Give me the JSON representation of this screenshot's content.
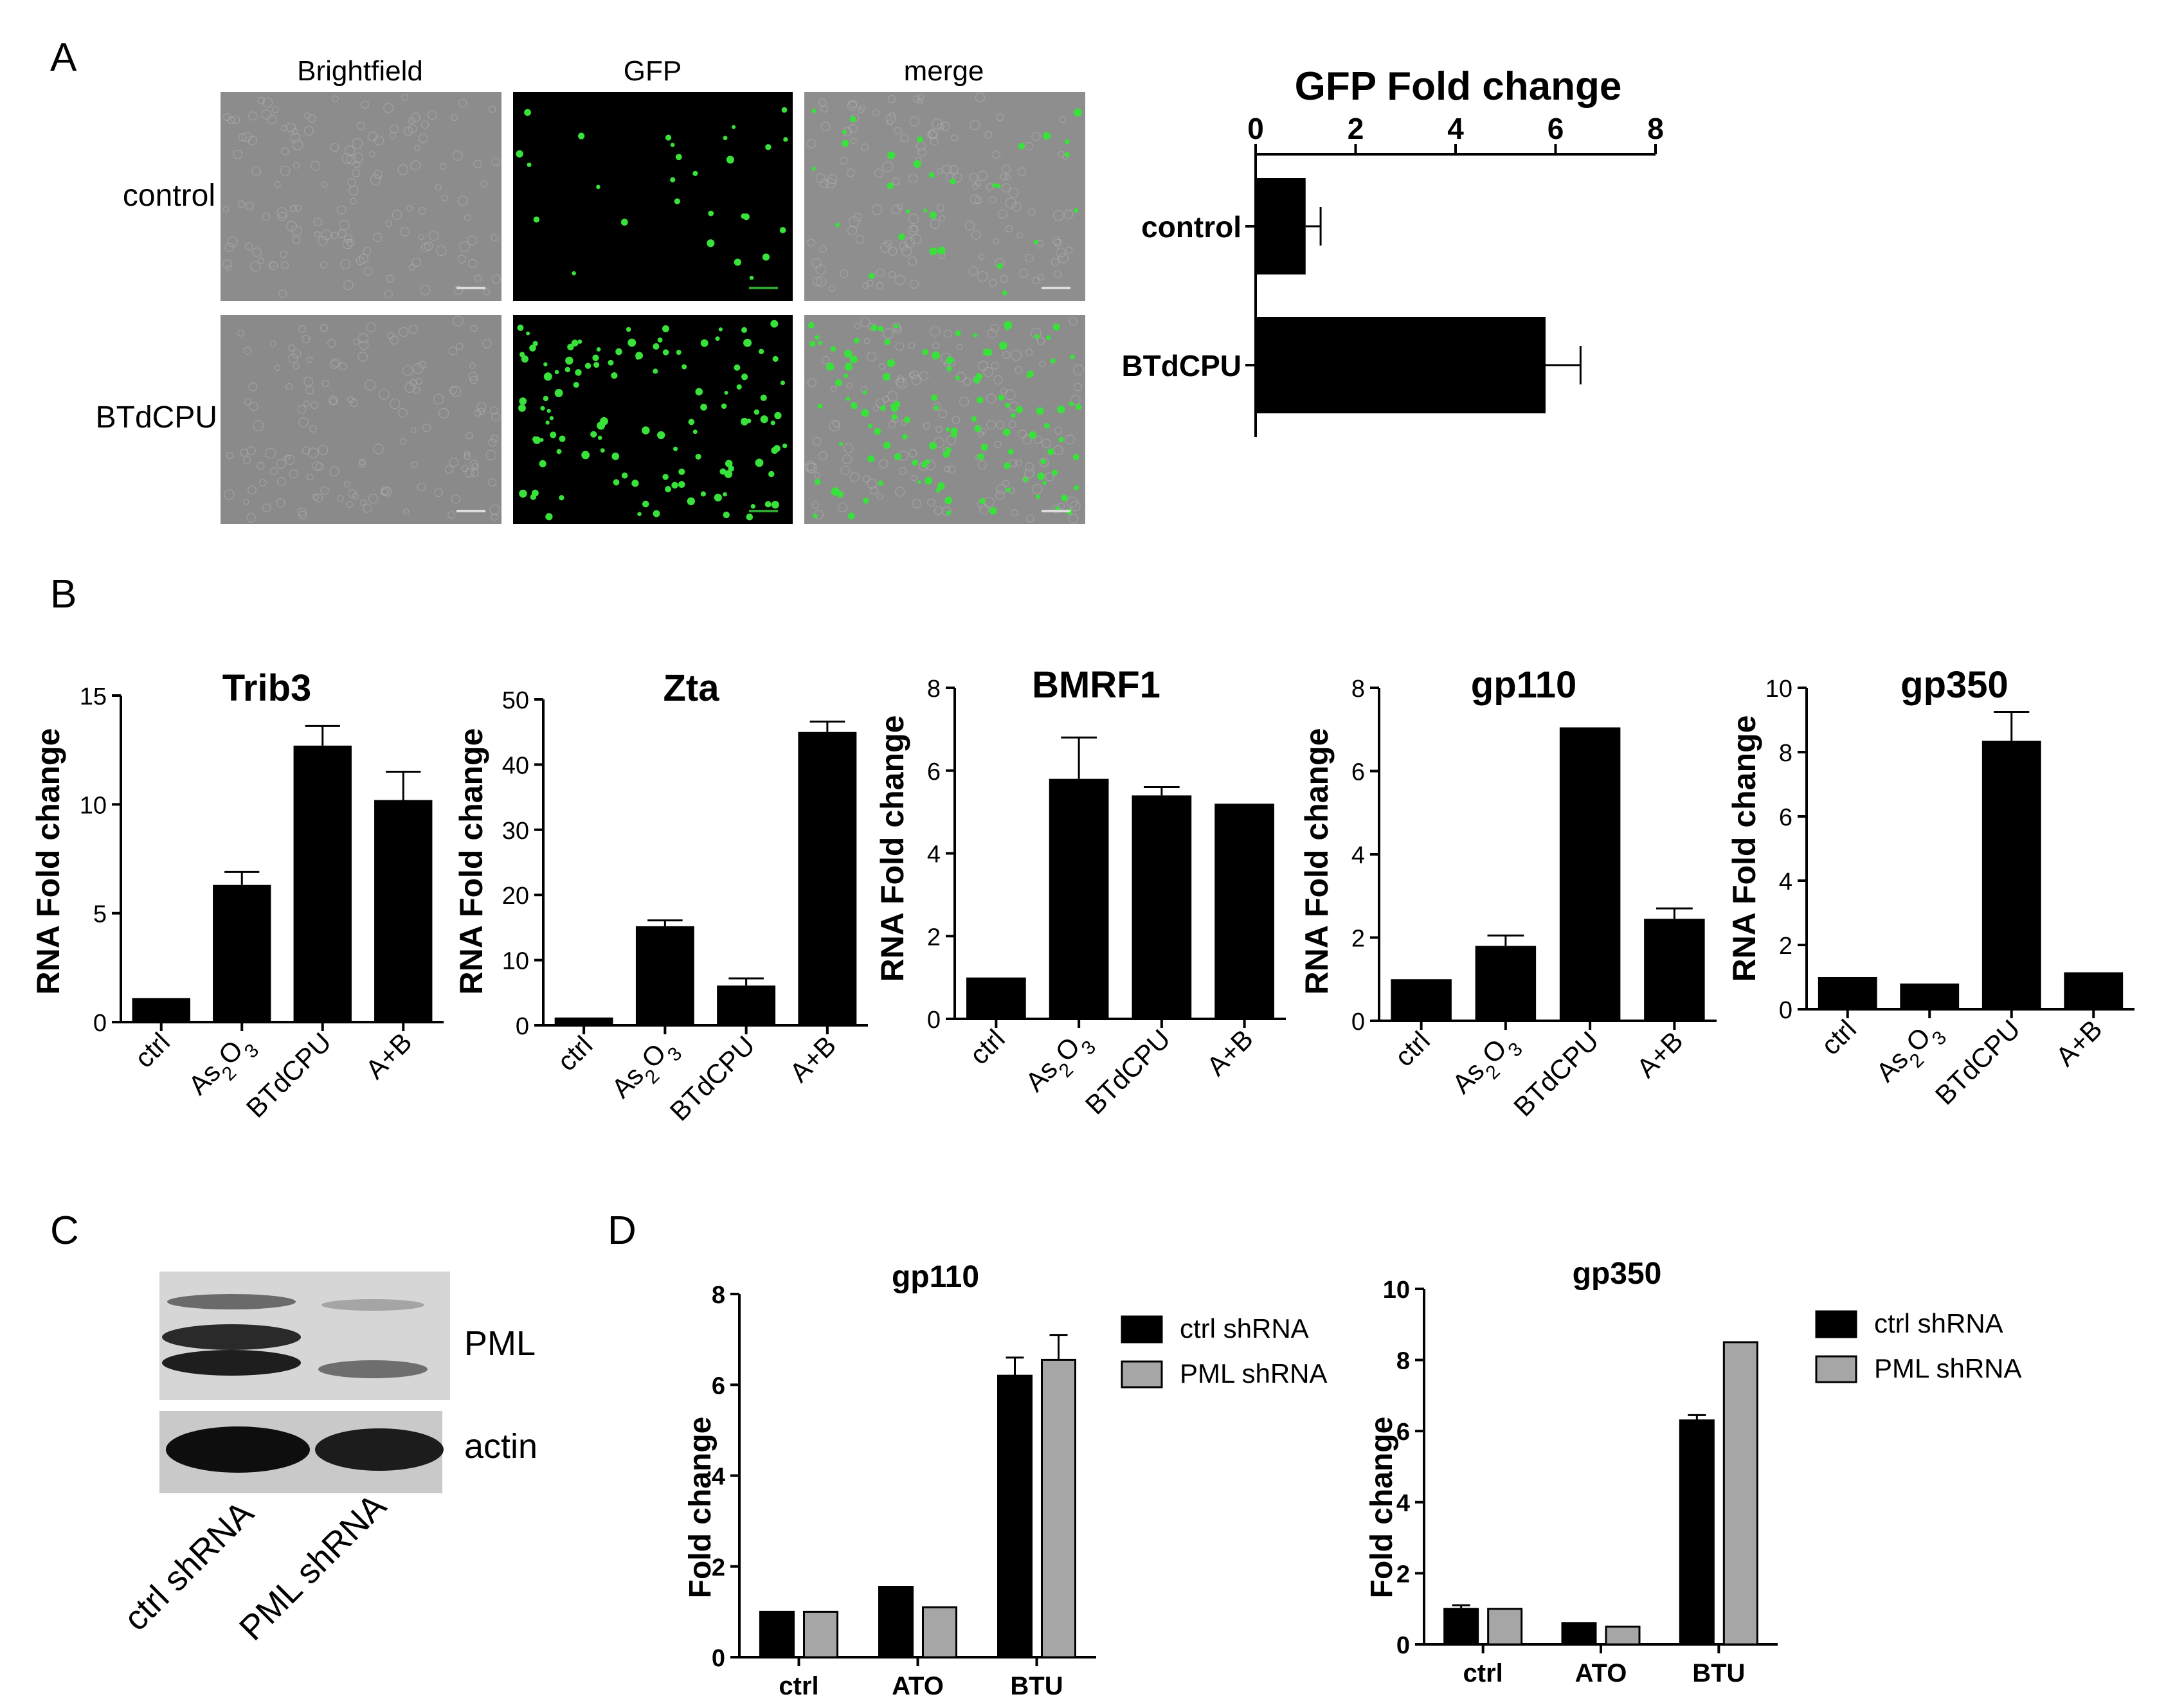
{
  "panels": {
    "A": "A",
    "B": "B",
    "C": "C",
    "D": "D"
  },
  "micro": {
    "col_labels": [
      "Brightfield",
      "GFP",
      "merge"
    ],
    "row_labels": [
      "control",
      "BTdCPU"
    ]
  },
  "blot": {
    "bands": [
      "PML",
      "actin"
    ],
    "lanes": [
      "ctrl shRNA",
      "PML shRNA"
    ]
  },
  "colors": {
    "bar": "#000000",
    "bar2": "#a6a6a6",
    "micro_bg": "#8c8c8c",
    "gfp_bg": "#000000",
    "gfp_dot": "#39e23a"
  },
  "chart_data": [
    {
      "type": "bar",
      "id": "A-gfp",
      "title": "GFP Fold change",
      "orientation": "horizontal",
      "categories": [
        "control",
        "BTdCPU"
      ],
      "values": [
        1.0,
        5.8
      ],
      "errors": [
        0.3,
        0.7
      ],
      "xlim": [
        0,
        8
      ],
      "ticks": [
        "0",
        "2",
        "4",
        "6",
        "8"
      ]
    },
    {
      "type": "bar",
      "id": "B-trib3",
      "title": "Trib3",
      "ylabel": "RNA Fold change",
      "categories": [
        "ctrl",
        "As2O3",
        "BTdCPU",
        "A+B"
      ],
      "values": [
        1.1,
        6.3,
        12.7,
        10.2
      ],
      "errors": [
        0.0,
        0.6,
        0.9,
        1.3
      ],
      "ylim": [
        0,
        15
      ],
      "ticks": [
        "0",
        "5",
        "10",
        "15"
      ]
    },
    {
      "type": "bar",
      "id": "B-zta",
      "title": "Zta",
      "ylabel": "RNA Fold change",
      "categories": [
        "ctrl",
        "As2O3",
        "BTdCPU",
        "A+B"
      ],
      "values": [
        1.2,
        15.2,
        6.1,
        45.0
      ],
      "errors": [
        0.0,
        0.9,
        1.1,
        1.6
      ],
      "ylim": [
        0,
        50
      ],
      "ticks": [
        "0",
        "10",
        "20",
        "30",
        "40",
        "50"
      ]
    },
    {
      "type": "bar",
      "id": "B-bmrf1",
      "title": "BMRF1",
      "ylabel": "RNA Fold change",
      "categories": [
        "ctrl",
        "As2O3",
        "BTdCPU",
        "A+B"
      ],
      "values": [
        1.0,
        5.8,
        5.4,
        5.2
      ],
      "errors": [
        0.0,
        1.0,
        0.2,
        0.0
      ],
      "ylim": [
        0,
        8
      ],
      "ticks": [
        "0",
        "2",
        "4",
        "6",
        "8"
      ]
    },
    {
      "type": "bar",
      "id": "B-gp110",
      "title": "gp110",
      "ylabel": "RNA Fold change",
      "categories": [
        "ctrl",
        "As2O3",
        "BTdCPU",
        "A+B"
      ],
      "values": [
        1.0,
        1.8,
        7.05,
        2.45
      ],
      "errors": [
        0.0,
        0.25,
        0.0,
        0.25
      ],
      "ylim": [
        0,
        8
      ],
      "ticks": [
        "0",
        "2",
        "4",
        "6",
        "8"
      ]
    },
    {
      "type": "bar",
      "id": "B-gp350",
      "title": "gp350",
      "ylabel": "RNA Fold change",
      "categories": [
        "ctrl",
        "As2O3",
        "BTdCPU",
        "A+B"
      ],
      "values": [
        1.0,
        0.8,
        8.35,
        1.15
      ],
      "errors": [
        0.0,
        0.0,
        0.9,
        0.0
      ],
      "ylim": [
        0,
        10
      ],
      "ticks": [
        "0",
        "2",
        "4",
        "6",
        "8",
        "10"
      ]
    },
    {
      "type": "bar",
      "id": "D-gp110",
      "title": "gp110",
      "ylabel": "Fold change",
      "categories": [
        "ctrl",
        "ATO",
        "BTU"
      ],
      "series": [
        {
          "name": "ctrl shRNA",
          "values": [
            1.0,
            1.55,
            6.2
          ],
          "errors": [
            0.0,
            0.0,
            0.4
          ]
        },
        {
          "name": "PML shRNA",
          "values": [
            1.0,
            1.1,
            6.55
          ],
          "errors": [
            0.0,
            0.0,
            0.55
          ]
        }
      ],
      "ylim": [
        0,
        8
      ],
      "ticks": [
        "0",
        "2",
        "4",
        "6",
        "8"
      ],
      "legend": "top-right"
    },
    {
      "type": "bar",
      "id": "D-gp350",
      "title": "gp350",
      "ylabel": "Fold change",
      "categories": [
        "ctrl",
        "ATO",
        "BTU"
      ],
      "series": [
        {
          "name": "ctrl shRNA",
          "values": [
            1.0,
            0.6,
            6.3
          ],
          "errors": [
            0.1,
            0.0,
            0.15
          ]
        },
        {
          "name": "PML shRNA",
          "values": [
            1.0,
            0.5,
            8.5
          ],
          "errors": [
            0.0,
            0.0,
            0.0
          ]
        }
      ],
      "ylim": [
        0,
        10
      ],
      "ticks": [
        "0",
        "2",
        "4",
        "6",
        "8",
        "10"
      ],
      "legend": "top-right"
    }
  ]
}
